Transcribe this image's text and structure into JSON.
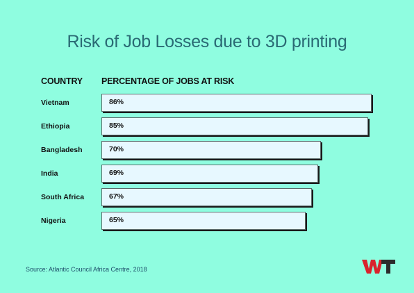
{
  "title": "Risk of Job Losses due to 3D printing",
  "headers": {
    "country": "COUNTRY",
    "percentage": "PERCENTAGE OF JOBS AT RISK"
  },
  "source": "Source: Atlantic Council Africa Centre, 2018",
  "logo": {
    "text": "WT",
    "colors": [
      "#d9232d",
      "#2b2b2b"
    ]
  },
  "colors": {
    "background": "#8ffde0",
    "title": "#2a6a74",
    "bar_fill": "#e7f8ff",
    "bar_border": "#5b6b6b"
  },
  "chart_data": {
    "type": "bar",
    "orientation": "horizontal",
    "title": "Risk of Job Losses due to 3D printing",
    "xlabel": "PERCENTAGE OF JOBS AT RISK",
    "ylabel": "COUNTRY",
    "categories": [
      "Vietnam",
      "Ethiopia",
      "Bangladesh",
      "India",
      "South Africa",
      "Nigeria"
    ],
    "values": [
      86,
      85,
      70,
      69,
      67,
      65
    ],
    "value_labels": [
      "86%",
      "85%",
      "70%",
      "69%",
      "67%",
      "65%"
    ],
    "unit": "%",
    "grid": false
  }
}
